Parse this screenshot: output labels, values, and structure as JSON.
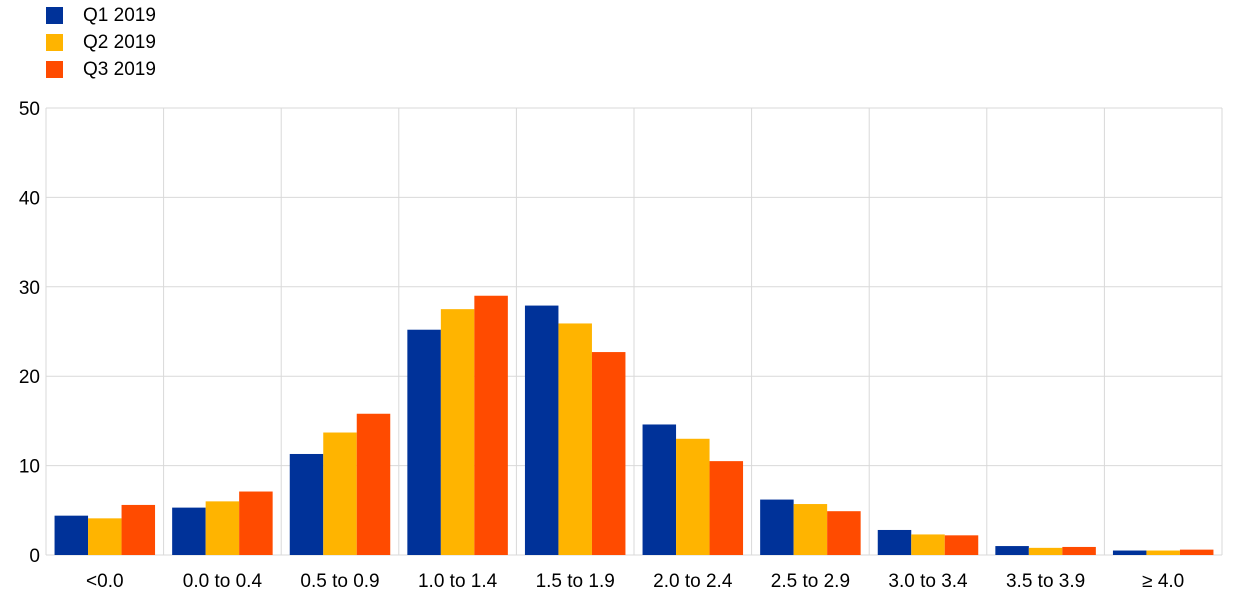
{
  "chart_data": {
    "type": "bar",
    "categories": [
      "<0.0",
      "0.0 to 0.4",
      "0.5 to 0.9",
      "1.0 to 1.4",
      "1.5 to 1.9",
      "2.0 to 2.4",
      "2.5 to 2.9",
      "3.0 to 3.4",
      "3.5 to 3.9",
      "≥ 4.0"
    ],
    "series": [
      {
        "name": "Q1 2019",
        "color": "#003299",
        "values": [
          4.4,
          5.3,
          11.3,
          25.2,
          27.9,
          14.6,
          6.2,
          2.8,
          1.0,
          0.5
        ]
      },
      {
        "name": "Q2 2019",
        "color": "#FFB400",
        "values": [
          4.1,
          6.0,
          13.7,
          27.5,
          25.9,
          13.0,
          5.7,
          2.3,
          0.8,
          0.5
        ]
      },
      {
        "name": "Q3 2019",
        "color": "#FF4B00",
        "values": [
          5.6,
          7.1,
          15.8,
          29.0,
          22.7,
          10.5,
          4.9,
          2.2,
          0.9,
          0.6
        ]
      }
    ],
    "ylim": [
      0,
      50
    ],
    "yticks": [
      0,
      10,
      20,
      30,
      40,
      50
    ],
    "grid": true,
    "legend_position": "top-left"
  }
}
